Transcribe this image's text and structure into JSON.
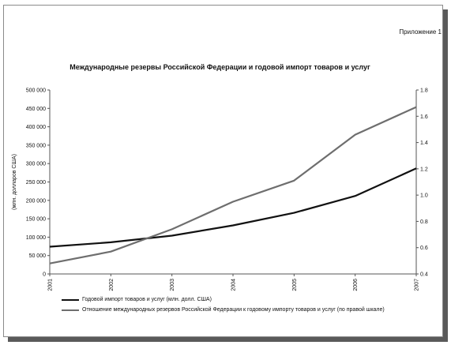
{
  "appendix_label": "Приложение 1",
  "colors": {
    "import": "#111111",
    "ratio": "#6e6e6e",
    "axis": "#555555",
    "text": "#111111"
  },
  "chart_data": {
    "type": "line",
    "title": "Международные резервы Российской Федерации и годовой импорт товаров и услуг",
    "ylabel": "(млн. долларов США)",
    "y_ticks": [
      "0",
      "50 000",
      "100 000",
      "150 000",
      "200 000",
      "250 000",
      "300 000",
      "350 000",
      "400 000",
      "450 000",
      "500 000"
    ],
    "ylim": [
      0,
      500000
    ],
    "y2_ticks": [
      "0.4",
      "0.6",
      "0.8",
      "1.0",
      "1.2",
      "1.4",
      "1.6",
      "1.8"
    ],
    "y2lim": [
      0.4,
      1.8
    ],
    "categories": [
      "2001",
      "2002",
      "2003",
      "2004",
      "2005",
      "2006",
      "2007"
    ],
    "grid": false,
    "legend_position": "bottom",
    "series": [
      {
        "name": "Годовой импорт товаров и услуг  (млн. долл. США)",
        "axis": "left",
        "values": [
          74000,
          86000,
          104000,
          132000,
          166000,
          212000,
          287000
        ]
      },
      {
        "name": "Отношение международных резервов Российской Федерации к годовому импорту товаров и услуг (по правой шкале)",
        "axis": "right",
        "values": [
          0.48,
          0.57,
          0.74,
          0.95,
          1.11,
          1.46,
          1.67
        ]
      }
    ]
  }
}
